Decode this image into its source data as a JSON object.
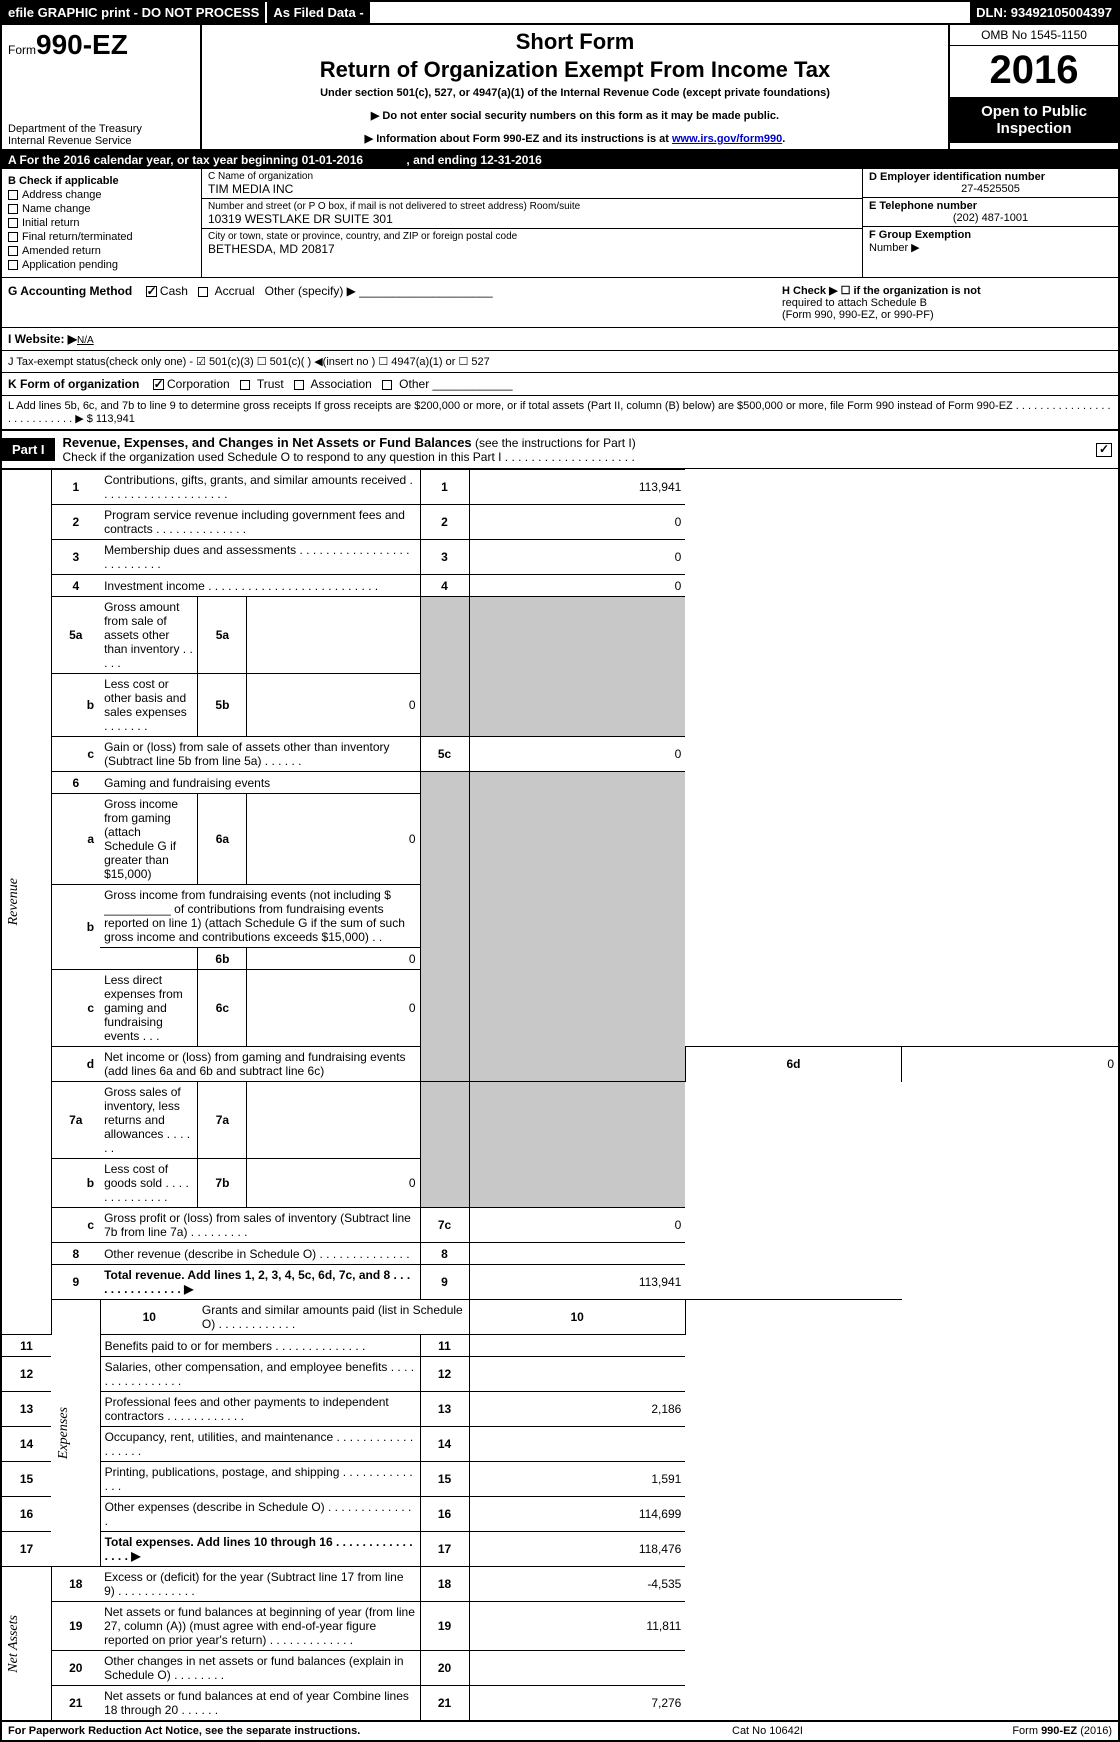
{
  "topbar": {
    "left": "efile GRAPHIC print - DO NOT PROCESS",
    "mid": "As Filed Data -",
    "right": "DLN: 93492105004397"
  },
  "header": {
    "form_prefix": "Form",
    "form_no": "990-EZ",
    "dept1": "Department of the Treasury",
    "dept2": "Internal Revenue Service",
    "short": "Short Form",
    "ret": "Return of Organization Exempt From Income Tax",
    "under": "Under section 501(c), 527, or 4947(a)(1) of the Internal Revenue Code (except private foundations)",
    "warn1": "▶ Do not enter social security numbers on this form as it may be made public.",
    "warn2_pre": "▶ Information about Form 990-EZ and its instructions is at ",
    "warn2_link": "www.irs.gov/form990",
    "warn2_post": ".",
    "omb": "OMB No 1545-1150",
    "year": "2016",
    "open1": "Open to Public",
    "open2": "Inspection"
  },
  "rowA": {
    "text": "A  For the 2016 calendar year, or tax year beginning 01-01-2016",
    "ending": ", and ending 12-31-2016"
  },
  "colB": {
    "title": "B  Check if applicable",
    "items": [
      "Address change",
      "Name change",
      "Initial return",
      "Final return/terminated",
      "Amended return",
      "Application pending"
    ]
  },
  "colC": {
    "c1_lbl": "C Name of organization",
    "c1_val": "TIM MEDIA INC",
    "c2_lbl": "Number and street (or P  O  box, if mail is not delivered to street address)   Room/suite",
    "c2_val": "10319 WESTLAKE DR SUITE 301",
    "c3_lbl": "City or town, state or province, country, and ZIP or foreign postal code",
    "c3_val": "BETHESDA, MD  20817"
  },
  "colDEF": {
    "d_lbl": "D Employer identification number",
    "d_val": "27-4525505",
    "e_lbl": "E Telephone number",
    "e_val": "(202) 487-1001",
    "f_lbl": "F Group Exemption",
    "f_lbl2": "Number    ▶"
  },
  "rowG": {
    "label": "G Accounting Method",
    "cash": "Cash",
    "accrual": "Accrual",
    "other": "Other (specify) ▶"
  },
  "rowH": {
    "text1": "H    Check ▶  ☐  if the organization is not",
    "text2": "required to attach Schedule B",
    "text3": "(Form 990, 990-EZ, or 990-PF)"
  },
  "rowI": {
    "label": "I Website: ▶",
    "val": "N/A"
  },
  "rowJ": {
    "text": "J Tax-exempt status(check only one) - ☑ 501(c)(3)  ☐ 501(c)(  ) ◀(insert no ) ☐ 4947(a)(1) or ☐ 527"
  },
  "rowK": {
    "label": "K Form of organization",
    "corp": "Corporation",
    "trust": "Trust",
    "assoc": "Association",
    "other": "Other"
  },
  "rowL": {
    "text": "L Add lines 5b, 6c, and 7b to line 9 to determine gross receipts  If gross receipts are $200,000 or more, or if total assets (Part II, column (B) below) are $500,000 or more, file Form 990 instead of Form 990-EZ  .  .  .  .  .  .  .  .  .  .  .  .  .  .  .  .  .  .  .  .  .  .  .  .  .  .  .  ▶ $ 113,941"
  },
  "part1": {
    "label": "Part I",
    "title_b": "Revenue, Expenses, and Changes in Net Assets or Fund Balances",
    "title_rest": " (see the instructions for Part I)",
    "sub": "Check if the organization used Schedule O to respond to any question in this Part I .  .  .  .  .  .  .  .  .  .  .  .  .  .  .  .  .  .  .  ."
  },
  "sidelabels": {
    "rev": "Revenue",
    "exp": "Expenses",
    "na": "Net Assets"
  },
  "lines": {
    "1": {
      "no": "1",
      "desc": "Contributions, gifts, grants, and similar amounts received .  .  .  .  .  .  .  .  .  .  .  .  .  .  .  .  .  .  .  .",
      "box": "1",
      "amt": "113,941"
    },
    "2": {
      "no": "2",
      "desc": "Program service revenue including government fees and contracts .  .  .  .  .  .  .  .  .  .  .  .  .  .",
      "box": "2",
      "amt": "0"
    },
    "3": {
      "no": "3",
      "desc": "Membership dues and assessments .  .  .  .  .  .  .  .  .  .  .  .  .  .  .  .  .  .  .  .  .  .  .  .  .  .",
      "box": "3",
      "amt": "0"
    },
    "4": {
      "no": "4",
      "desc": "Investment income .  .  .  .  .  .  .  .  .  .  .  .  .  .  .  .  .  .  .  .  .  .  .  .  .  .",
      "box": "4",
      "amt": "0"
    },
    "5a": {
      "no": "5a",
      "desc": "Gross amount from sale of assets other than inventory .  .  .  .  .",
      "mbox": "5a",
      "mval": ""
    },
    "5b": {
      "no": "b",
      "desc": "Less  cost or other basis and sales expenses .  .  .  .  .  .  .",
      "mbox": "5b",
      "mval": "0"
    },
    "5c": {
      "no": "c",
      "desc": "Gain or (loss) from sale of assets other than inventory (Subtract line 5b from line 5a) .  .  .  .  .  .",
      "box": "5c",
      "amt": "0"
    },
    "6": {
      "no": "6",
      "desc": "Gaming and fundraising events"
    },
    "6a": {
      "no": "a",
      "desc": "Gross income from gaming (attach Schedule G if greater than $15,000)",
      "mbox": "6a",
      "mval": "0"
    },
    "6b": {
      "no": "b",
      "desc_pre": "Gross income from fundraising events (not including $ ",
      "desc_post": " of contributions from fundraising events reported on line 1) (attach Schedule G if the sum of such gross income and contributions exceeds $15,000)    .  .",
      "mbox": "6b",
      "mval": "0"
    },
    "6c": {
      "no": "c",
      "desc": "Less  direct expenses from gaming and fundraising events       .  .  .",
      "mbox": "6c",
      "mval": "0"
    },
    "6d": {
      "no": "d",
      "desc": "Net income or (loss) from gaming and fundraising events (add lines 6a and 6b and subtract line 6c)",
      "box": "6d",
      "amt": "0"
    },
    "7a": {
      "no": "7a",
      "desc": "Gross sales of inventory, less returns and allowances .  .  .  .  .  .",
      "mbox": "7a",
      "mval": ""
    },
    "7b": {
      "no": "b",
      "desc": "Less  cost of goods sold         .  .  .  .  .  .  .  .  .  .  .  .  .  .",
      "mbox": "7b",
      "mval": "0"
    },
    "7c": {
      "no": "c",
      "desc": "Gross profit or (loss) from sales of inventory (Subtract line 7b from line 7a) .  .  .  .  .  .  .  .  .",
      "box": "7c",
      "amt": "0"
    },
    "8": {
      "no": "8",
      "desc": "Other revenue (describe in Schedule O)                       .  .  .  .  .  .  .  .  .  .  .  .  .  .",
      "box": "8",
      "amt": ""
    },
    "9": {
      "no": "9",
      "desc": "Total revenue. Add lines 1, 2, 3, 4, 5c, 6d, 7c, and 8 .  .  .  .  .  .  .  .  .  .  .  .  .  .  .   ▶",
      "box": "9",
      "amt": "113,941",
      "bold": true
    },
    "10": {
      "no": "10",
      "desc": "Grants and similar amounts paid (list in Schedule O)          .  .  .  .  .  .  .  .  .  .  .  .",
      "box": "10",
      "amt": ""
    },
    "11": {
      "no": "11",
      "desc": "Benefits paid to or for members                     .  .  .  .  .  .  .  .  .  .  .  .  .  .",
      "box": "11",
      "amt": ""
    },
    "12": {
      "no": "12",
      "desc": "Salaries, other compensation, and employee benefits .  .  .  .  .  .  .  .  .  .  .  .  .  .  .  .",
      "box": "12",
      "amt": ""
    },
    "13": {
      "no": "13",
      "desc": "Professional fees and other payments to independent contractors  .  .  .  .  .  .  .  .  .  .  .  .",
      "box": "13",
      "amt": "2,186"
    },
    "14": {
      "no": "14",
      "desc": "Occupancy, rent, utilities, and maintenance .  .  .  .  .  .  .  .  .  .  .  .  .  .  .  .  .  .",
      "box": "14",
      "amt": ""
    },
    "15": {
      "no": "15",
      "desc": "Printing, publications, postage, and shipping            .  .  .  .  .  .  .  .  .  .  .  .  .  .",
      "box": "15",
      "amt": "1,591"
    },
    "16": {
      "no": "16",
      "desc": "Other expenses (describe in Schedule O)                 .  .  .  .  .  .  .  .  .  .  .  .  .  .",
      "box": "16",
      "amt": "114,699"
    },
    "17": {
      "no": "17",
      "desc": "Total expenses. Add lines 10 through 16         .  .  .  .  .  .  .  .  .  .  .  .  .  .  .  .   ▶",
      "box": "17",
      "amt": "118,476",
      "bold": true
    },
    "18": {
      "no": "18",
      "desc": "Excess or (deficit) for the year (Subtract line 17 from line 9)       .  .  .  .  .  .  .  .  .  .  .  .",
      "box": "18",
      "amt": "-4,535"
    },
    "19": {
      "no": "19",
      "desc": "Net assets or fund balances at beginning of year (from line 27, column (A)) (must agree with end-of-year figure reported on prior year's return)               .  .  .  .  .  .  .  .  .  .  .  .  .",
      "box": "19",
      "amt": "11,811"
    },
    "20": {
      "no": "20",
      "desc": "Other changes in net assets or fund balances (explain in Schedule O)     .  .  .  .  .  .  .  .",
      "box": "20",
      "amt": ""
    },
    "21": {
      "no": "21",
      "desc": "Net assets or fund balances at end of year  Combine lines 18 through 20        .  .  .  .  .  .",
      "box": "21",
      "amt": "7,276"
    }
  },
  "footer": {
    "left": "For Paperwork Reduction Act Notice, see the separate instructions.",
    "mid": "Cat No  10642I",
    "right": "Form 990-EZ (2016)"
  },
  "colors": {
    "black": "#000000",
    "white": "#ffffff",
    "grey": "#c8c8c8",
    "link": "#0000cc"
  }
}
